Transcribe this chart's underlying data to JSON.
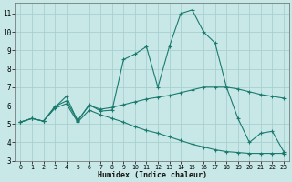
{
  "xlabel": "Humidex (Indice chaleur)",
  "bg_color": "#c8e8e8",
  "grid_color": "#a8d0d0",
  "line_color": "#1a7a6e",
  "xlim": [
    -0.5,
    23.5
  ],
  "ylim": [
    3.0,
    11.6
  ],
  "yticks": [
    3,
    4,
    5,
    6,
    7,
    8,
    9,
    10,
    11
  ],
  "xticks": [
    0,
    1,
    2,
    3,
    4,
    5,
    6,
    7,
    8,
    9,
    10,
    11,
    12,
    13,
    14,
    15,
    16,
    17,
    18,
    19,
    20,
    21,
    22,
    23
  ],
  "series": [
    {
      "x": [
        0,
        1,
        2,
        3,
        4,
        5,
        6,
        7,
        8,
        9,
        10,
        11,
        12,
        13,
        14,
        15,
        16,
        17,
        18,
        19,
        20,
        21,
        22,
        23
      ],
      "y": [
        5.1,
        5.3,
        5.15,
        5.9,
        6.5,
        5.15,
        6.05,
        5.7,
        5.75,
        8.5,
        8.8,
        9.2,
        7.0,
        9.2,
        11.0,
        11.2,
        10.0,
        9.4,
        7.0,
        5.3,
        4.0,
        4.5,
        4.6,
        3.5
      ]
    },
    {
      "x": [
        0,
        1,
        2,
        3,
        4,
        5,
        6,
        7,
        8,
        9,
        10,
        11,
        12,
        13,
        14,
        15,
        16,
        17,
        18,
        19,
        20,
        21,
        22,
        23
      ],
      "y": [
        5.1,
        5.3,
        5.15,
        5.95,
        6.25,
        5.2,
        6.0,
        5.8,
        5.9,
        6.05,
        6.2,
        6.35,
        6.45,
        6.55,
        6.7,
        6.85,
        7.0,
        7.0,
        7.0,
        6.9,
        6.75,
        6.6,
        6.5,
        6.4
      ]
    },
    {
      "x": [
        0,
        1,
        2,
        3,
        4,
        5,
        6,
        7,
        8,
        9,
        10,
        11,
        12,
        13,
        14,
        15,
        16,
        17,
        18,
        19,
        20,
        21,
        22,
        23
      ],
      "y": [
        5.1,
        5.3,
        5.15,
        5.85,
        6.1,
        5.1,
        5.75,
        5.5,
        5.3,
        5.1,
        4.85,
        4.65,
        4.5,
        4.3,
        4.1,
        3.9,
        3.75,
        3.6,
        3.5,
        3.45,
        3.4,
        3.4,
        3.4,
        3.4
      ]
    }
  ]
}
